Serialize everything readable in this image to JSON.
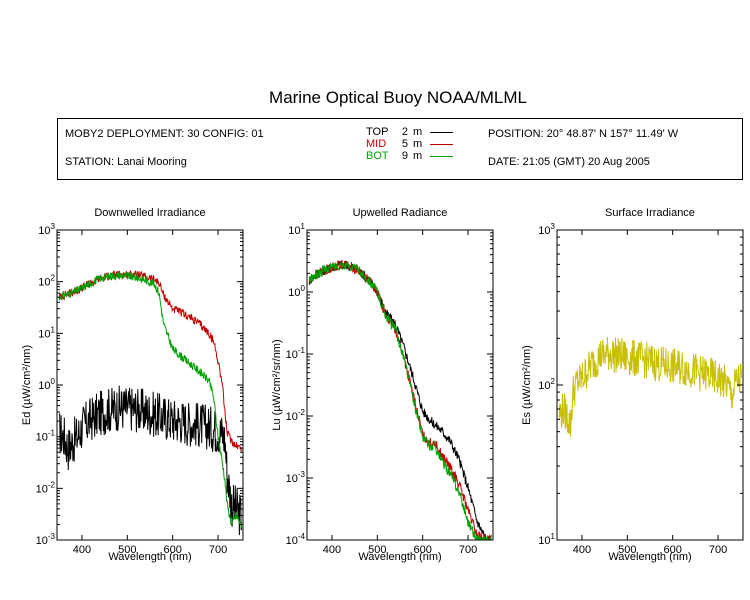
{
  "title": "Marine Optical Buoy NOAA/MLML",
  "info": {
    "deployment": "MOBY2 DEPLOYMENT: 30 CONFIG: 01",
    "station": "STATION: Lanai Mooring",
    "position": "POSITION: 20° 48.87' N   157° 11.49' W",
    "date": "DATE: 21:05 (GMT) 20 Aug 2005",
    "legend": [
      {
        "name": "TOP",
        "depth": "2",
        "unit": "m",
        "color": "#000000"
      },
      {
        "name": "MID",
        "depth": "5",
        "unit": "m",
        "color": "#c00000"
      },
      {
        "name": "BOT",
        "depth": "9",
        "unit": "m",
        "color": "#00a000"
      }
    ]
  },
  "chart_data": [
    {
      "type": "line",
      "title": "Downwelled Irradiance",
      "xlabel": "Wavelength (nm)",
      "ylabel": "Ed  (µW/cm²/nm)",
      "xlim": [
        345,
        755
      ],
      "ylim": [
        0.001,
        1000
      ],
      "yscale": "log",
      "xticks": [
        400,
        500,
        600,
        700
      ],
      "yticks": [
        {
          "value": 0.001,
          "base": "10",
          "exp": "-3"
        },
        {
          "value": 0.01,
          "base": "10",
          "exp": "-2"
        },
        {
          "value": 0.1,
          "base": "10",
          "exp": "-1"
        },
        {
          "value": 1,
          "base": "10",
          "exp": "0"
        },
        {
          "value": 10,
          "base": "10",
          "exp": "1"
        },
        {
          "value": 100,
          "base": "10",
          "exp": "2"
        },
        {
          "value": 1000,
          "base": "10",
          "exp": "3"
        }
      ],
      "series": [
        {
          "name": "TOP",
          "color": "#000000",
          "noise": 0.45,
          "x": [
            350,
            360,
            370,
            380,
            390,
            400,
            420,
            440,
            460,
            480,
            500,
            520,
            540,
            560,
            580,
            600,
            620,
            640,
            660,
            680,
            700,
            710,
            715,
            720,
            730,
            740,
            750
          ],
          "y": [
            0.12,
            0.1,
            0.06,
            0.08,
            0.1,
            0.15,
            0.22,
            0.28,
            0.33,
            0.36,
            0.36,
            0.34,
            0.3,
            0.27,
            0.24,
            0.21,
            0.2,
            0.18,
            0.17,
            0.15,
            0.13,
            0.11,
            0.09,
            0.02,
            0.005,
            0.004,
            0.003
          ]
        },
        {
          "name": "MID",
          "color": "#c00000",
          "noise": 0.08,
          "x": [
            350,
            360,
            380,
            400,
            420,
            440,
            460,
            480,
            500,
            520,
            540,
            560,
            570,
            580,
            600,
            620,
            640,
            660,
            680,
            690,
            700,
            710,
            715,
            720,
            730,
            740,
            750
          ],
          "y": [
            50,
            55,
            62,
            75,
            95,
            115,
            130,
            138,
            140,
            135,
            125,
            110,
            95,
            55,
            30,
            25,
            20,
            15,
            10,
            7,
            3,
            1,
            0.3,
            0.12,
            0.08,
            0.07,
            0.06
          ]
        },
        {
          "name": "BOT",
          "color": "#00a000",
          "noise": 0.08,
          "x": [
            350,
            360,
            380,
            400,
            420,
            440,
            460,
            480,
            500,
            520,
            540,
            560,
            570,
            580,
            600,
            620,
            640,
            660,
            680,
            690,
            700,
            710,
            715,
            720,
            730,
            740,
            750
          ],
          "y": [
            50,
            55,
            62,
            75,
            95,
            115,
            128,
            133,
            130,
            120,
            108,
            90,
            60,
            15,
            5,
            3.5,
            2.5,
            1.8,
            1.2,
            0.6,
            0.1,
            0.03,
            0.015,
            0.005,
            0.002,
            0.003,
            0.002
          ]
        }
      ]
    },
    {
      "type": "line",
      "title": "Upwelled Radiance",
      "xlabel": "Wavelength (nm)",
      "ylabel": "Lu  (µW/cm²/sr/nm)",
      "xlim": [
        345,
        755
      ],
      "ylim": [
        0.0001,
        10
      ],
      "yscale": "log",
      "xticks": [
        400,
        500,
        600,
        700
      ],
      "yticks": [
        {
          "value": 0.0001,
          "base": "10",
          "exp": "-4"
        },
        {
          "value": 0.001,
          "base": "10",
          "exp": "-3"
        },
        {
          "value": 0.01,
          "base": "10",
          "exp": "-2"
        },
        {
          "value": 0.1,
          "base": "10",
          "exp": "-1"
        },
        {
          "value": 1,
          "base": "10",
          "exp": "0"
        },
        {
          "value": 10,
          "base": "10",
          "exp": "1"
        }
      ],
      "series": [
        {
          "name": "TOP",
          "color": "#000000",
          "noise": 0.08,
          "x": [
            350,
            360,
            380,
            400,
            420,
            440,
            460,
            480,
            500,
            520,
            540,
            560,
            580,
            600,
            620,
            640,
            660,
            680,
            700,
            720,
            740
          ],
          "y": [
            1.5,
            1.8,
            2.2,
            2.5,
            2.8,
            2.6,
            2.2,
            1.6,
            1.0,
            0.45,
            0.3,
            0.12,
            0.04,
            0.012,
            0.008,
            0.006,
            0.004,
            0.002,
            0.0007,
            0.0002,
            0.0001
          ]
        },
        {
          "name": "MID",
          "color": "#c00000",
          "noise": 0.08,
          "x": [
            350,
            360,
            380,
            400,
            420,
            440,
            460,
            480,
            500,
            520,
            540,
            560,
            580,
            600,
            620,
            625,
            640,
            660,
            680,
            700,
            720,
            740
          ],
          "y": [
            1.5,
            1.8,
            2.2,
            2.5,
            2.8,
            2.6,
            2.2,
            1.6,
            1.0,
            0.4,
            0.25,
            0.08,
            0.02,
            0.005,
            0.0035,
            0.004,
            0.0025,
            0.0015,
            0.0008,
            0.0003,
            0.00012,
            0.0001
          ]
        },
        {
          "name": "BOT",
          "color": "#00a000",
          "noise": 0.08,
          "x": [
            350,
            360,
            380,
            400,
            420,
            440,
            460,
            480,
            500,
            520,
            540,
            560,
            580,
            600,
            620,
            625,
            640,
            660,
            680,
            700,
            720,
            740
          ],
          "y": [
            1.5,
            1.8,
            2.2,
            2.5,
            2.8,
            2.6,
            2.2,
            1.6,
            1.0,
            0.4,
            0.25,
            0.08,
            0.018,
            0.0045,
            0.003,
            0.0035,
            0.002,
            0.0012,
            0.0006,
            0.0002,
            0.0001,
            0.0001
          ]
        }
      ]
    },
    {
      "type": "line",
      "title": "Surface Irradiance",
      "xlabel": "Wavelength (nm)",
      "ylabel": "Es  (µW/cm²/nm)",
      "xlim": [
        345,
        755
      ],
      "ylim": [
        10,
        1000
      ],
      "yscale": "log",
      "xticks": [
        400,
        500,
        600,
        700
      ],
      "yticks": [
        {
          "value": 10,
          "base": "10",
          "exp": "1"
        },
        {
          "value": 100,
          "base": "10",
          "exp": "2"
        },
        {
          "value": 1000,
          "base": "10",
          "exp": "3"
        }
      ],
      "series": [
        {
          "name": "Es",
          "color": "#c8c000",
          "noise": 0.12,
          "x": [
            350,
            360,
            370,
            375,
            380,
            390,
            400,
            420,
            440,
            460,
            480,
            500,
            520,
            540,
            560,
            580,
            600,
            620,
            640,
            660,
            680,
            700,
            720,
            730,
            740,
            750
          ],
          "y": [
            65,
            70,
            60,
            55,
            90,
            105,
            110,
            135,
            155,
            160,
            155,
            150,
            148,
            145,
            140,
            135,
            132,
            130,
            125,
            120,
            115,
            110,
            100,
            85,
            105,
            110
          ]
        }
      ]
    }
  ]
}
